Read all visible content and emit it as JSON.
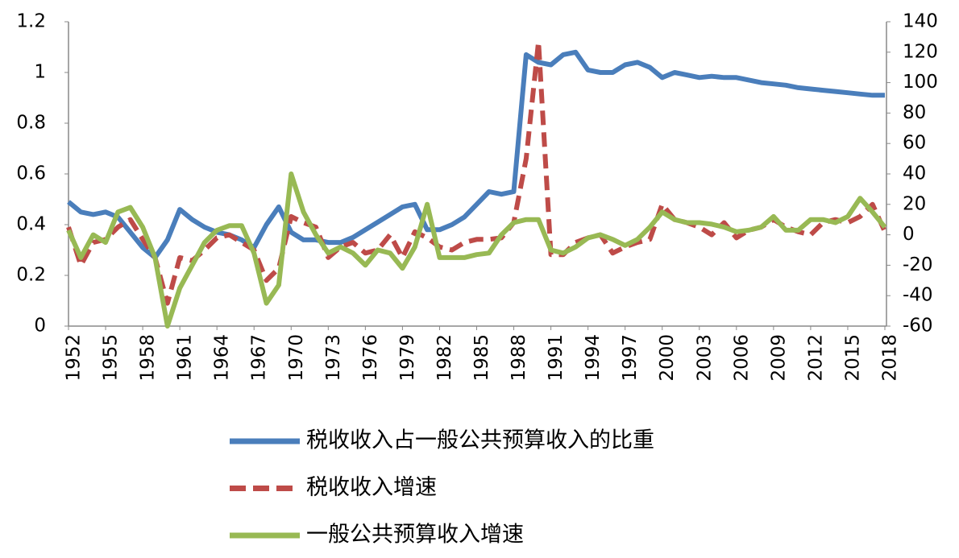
{
  "chart_data": {
    "type": "line",
    "x": [
      1952,
      1953,
      1954,
      1955,
      1956,
      1957,
      1958,
      1959,
      1960,
      1961,
      1962,
      1963,
      1964,
      1965,
      1966,
      1967,
      1968,
      1969,
      1970,
      1971,
      1972,
      1973,
      1974,
      1975,
      1976,
      1977,
      1978,
      1979,
      1980,
      1981,
      1982,
      1983,
      1984,
      1985,
      1986,
      1987,
      1988,
      1989,
      1990,
      1991,
      1992,
      1993,
      1994,
      1995,
      1996,
      1997,
      1998,
      1999,
      2000,
      2001,
      2002,
      2003,
      2004,
      2005,
      2006,
      2007,
      2008,
      2009,
      2010,
      2011,
      2012,
      2013,
      2014,
      2015,
      2016,
      2017,
      2018
    ],
    "xlim": [
      1952,
      2018
    ],
    "xticks": [
      1952,
      1955,
      1958,
      1961,
      1964,
      1967,
      1970,
      1973,
      1976,
      1979,
      1982,
      1985,
      1988,
      1991,
      1994,
      1997,
      2000,
      2003,
      2006,
      2009,
      2012,
      2015,
      2018
    ],
    "ylim": [
      0,
      1.2
    ],
    "yticks": [
      0,
      0.2,
      0.4,
      0.6,
      0.8,
      1,
      1.2
    ],
    "y2lim": [
      -60,
      140
    ],
    "y2ticks": [
      -60,
      -40,
      -20,
      0,
      20,
      40,
      60,
      80,
      100,
      120,
      140
    ],
    "legend": "bottom",
    "series": [
      {
        "name": "税收收入占一般公共预算收入的比重",
        "color": "#4a7ebb",
        "style": "solid",
        "values": [
          0.49,
          0.45,
          0.44,
          0.45,
          0.43,
          0.37,
          0.31,
          0.27,
          0.34,
          0.46,
          0.42,
          0.39,
          0.37,
          0.36,
          0.34,
          0.31,
          0.4,
          0.47,
          0.37,
          0.34,
          0.34,
          0.33,
          0.33,
          0.35,
          0.38,
          0.41,
          0.44,
          0.47,
          0.48,
          0.38,
          0.38,
          0.4,
          0.43,
          0.48,
          0.53,
          0.52,
          0.53,
          1.07,
          1.04,
          1.03,
          1.07,
          1.08,
          1.01,
          1.0,
          1.0,
          1.03,
          1.04,
          1.02,
          0.98,
          1.0,
          0.99,
          0.98,
          0.985,
          0.98,
          0.98,
          0.97,
          0.96,
          0.955,
          0.95,
          0.94,
          0.935,
          0.93,
          0.925,
          0.92,
          0.915,
          0.91,
          0.91
        ]
      },
      {
        "name": "税收收入增速",
        "color": "#be4b48",
        "style": "dashed",
        "axis": "y2",
        "values": [
          5,
          -20,
          -5,
          -3,
          5,
          10,
          -3,
          -15,
          -45,
          -15,
          -17,
          -10,
          -2,
          0,
          -5,
          -10,
          -30,
          -22,
          12,
          8,
          5,
          -15,
          -8,
          -5,
          -12,
          -10,
          0,
          -15,
          2,
          -2,
          -8,
          -10,
          -5,
          -3,
          -3,
          -2,
          8,
          50,
          127,
          -13,
          -13,
          -5,
          -2,
          0,
          -12,
          -8,
          -5,
          -3,
          20,
          10,
          8,
          5,
          0,
          8,
          -2,
          3,
          5,
          10,
          5,
          2,
          0,
          8,
          10,
          8,
          12,
          20,
          2
        ]
      },
      {
        "name": "一般公共预算收入增速",
        "color": "#98b954",
        "style": "solid",
        "axis": "y2",
        "values": [
          3,
          -15,
          0,
          -5,
          15,
          18,
          5,
          -15,
          -60,
          -35,
          -20,
          -5,
          3,
          6,
          6,
          -12,
          -45,
          -33,
          40,
          15,
          0,
          -12,
          -8,
          -12,
          -20,
          -10,
          -12,
          -22,
          -8,
          20,
          -15,
          -15,
          -15,
          -13,
          -12,
          0,
          8,
          10,
          10,
          -10,
          -12,
          -8,
          -2,
          0,
          -3,
          -7,
          -3,
          5,
          15,
          10,
          8,
          8,
          7,
          5,
          2,
          3,
          5,
          12,
          3,
          3,
          10,
          10,
          8,
          12,
          24,
          15,
          5
        ]
      }
    ]
  }
}
